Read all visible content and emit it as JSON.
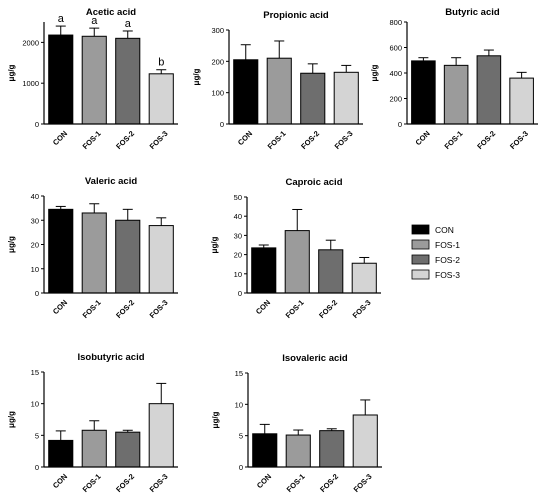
{
  "legend": {
    "placement": "right",
    "entries": [
      {
        "label": "CON",
        "color": "#000000"
      },
      {
        "label": "FOS-1",
        "color": "#9b9b9b"
      },
      {
        "label": "FOS-2",
        "color": "#6e6e6e"
      },
      {
        "label": "FOS-3",
        "color": "#d4d4d4"
      }
    ]
  },
  "chart_data": [
    {
      "type": "bar",
      "title": "Acetic acid",
      "ylabel": "μg/g",
      "categories": [
        "CON",
        "FOS-1",
        "FOS-2",
        "FOS-3"
      ],
      "values": [
        2180,
        2150,
        2100,
        1230
      ],
      "errors": [
        220,
        200,
        180,
        100
      ],
      "significance_letters": [
        "a",
        "a",
        "a",
        "b"
      ],
      "ylim": [
        0,
        2500
      ],
      "yticks": [
        0,
        1000,
        2000
      ],
      "grid": false
    },
    {
      "type": "bar",
      "title": "Propionic acid",
      "ylabel": "μg/g",
      "categories": [
        "CON",
        "FOS-1",
        "FOS-2",
        "FOS-3"
      ],
      "values": [
        205,
        210,
        162,
        165
      ],
      "errors": [
        48,
        55,
        30,
        22
      ],
      "ylim": [
        0,
        300
      ],
      "yticks": [
        0,
        100,
        200,
        300
      ],
      "grid": false
    },
    {
      "type": "bar",
      "title": "Butyric acid",
      "ylabel": "μg/g",
      "categories": [
        "CON",
        "FOS-1",
        "FOS-2",
        "FOS-3"
      ],
      "values": [
        495,
        460,
        535,
        360
      ],
      "errors": [
        25,
        60,
        45,
        45
      ],
      "ylim": [
        0,
        800
      ],
      "yticks": [
        0,
        200,
        400,
        600,
        800
      ],
      "grid": false
    },
    {
      "type": "bar",
      "title": "Valeric acid",
      "ylabel": "μg/g",
      "categories": [
        "CON",
        "FOS-1",
        "FOS-2",
        "FOS-3"
      ],
      "values": [
        34.5,
        33,
        30,
        27.8
      ],
      "errors": [
        1.2,
        3.8,
        4.5,
        3.2
      ],
      "ylim": [
        0,
        40
      ],
      "yticks": [
        0,
        10,
        20,
        30,
        40
      ],
      "grid": false
    },
    {
      "type": "bar",
      "title": "Caproic acid",
      "ylabel": "μg/g",
      "categories": [
        "CON",
        "FOS-1",
        "FOS-2",
        "FOS-3"
      ],
      "values": [
        23.5,
        32.5,
        22.5,
        15.5
      ],
      "errors": [
        1.5,
        11,
        5,
        3
      ],
      "ylim": [
        0,
        50
      ],
      "yticks": [
        0,
        10,
        20,
        30,
        40,
        50
      ],
      "grid": false
    },
    {
      "type": "bar",
      "title": "Isobutyric acid",
      "ylabel": "μg/g",
      "categories": [
        "CON",
        "FOS-1",
        "FOS-2",
        "FOS-3"
      ],
      "values": [
        4.2,
        5.8,
        5.5,
        10
      ],
      "errors": [
        1.5,
        1.5,
        0.3,
        3.2
      ],
      "ylim": [
        0,
        15
      ],
      "yticks": [
        0,
        5,
        10,
        15
      ],
      "grid": false
    },
    {
      "type": "bar",
      "title": "Isovaleric acid",
      "ylabel": "μg/g",
      "categories": [
        "CON",
        "FOS-1",
        "FOS-2",
        "FOS-3"
      ],
      "values": [
        5.3,
        5.1,
        5.8,
        8.3
      ],
      "errors": [
        1.5,
        0.8,
        0.3,
        2.4
      ],
      "ylim": [
        0,
        15
      ],
      "yticks": [
        0,
        5,
        10,
        15
      ],
      "grid": false
    }
  ]
}
